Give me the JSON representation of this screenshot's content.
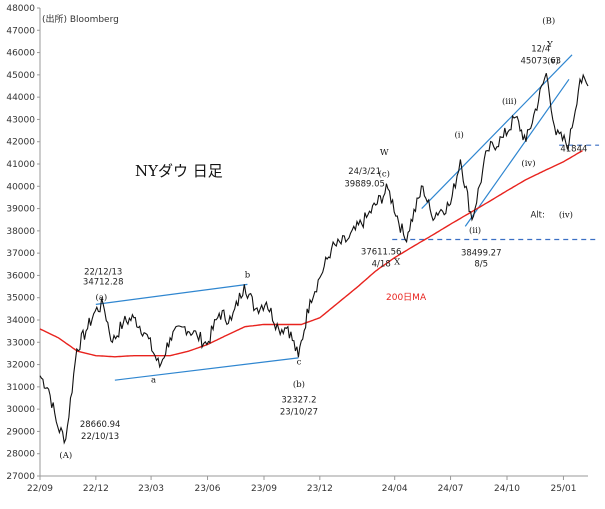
{
  "source_label": "(出所) Bloomberg",
  "title": "NYダウ 日足",
  "ma_label": "200日MA",
  "colors": {
    "price": "#111111",
    "ma": "#e8231e",
    "channel": "#2f86d0",
    "support_line": "#3a6fc4",
    "support_label": "#3a8fd1",
    "grid": "#cccccc"
  },
  "chart_data": {
    "type": "line",
    "title": "NYダウ 日足",
    "xlabel": "",
    "ylabel": "",
    "x_range": [
      "2022-09-01",
      "2025-02-10"
    ],
    "ylim": [
      27000,
      48000
    ],
    "y_ticks": [
      27000,
      28000,
      29000,
      30000,
      31000,
      32000,
      33000,
      34000,
      35000,
      36000,
      37000,
      38000,
      39000,
      40000,
      41000,
      42000,
      43000,
      44000,
      45000,
      46000,
      47000,
      48000
    ],
    "x_ticks": [
      {
        "date": "2022-09-01",
        "label": "22/09"
      },
      {
        "date": "2022-12-01",
        "label": "22/12"
      },
      {
        "date": "2023-03-01",
        "label": "23/03"
      },
      {
        "date": "2023-06-01",
        "label": "23/06"
      },
      {
        "date": "2023-09-01",
        "label": "23/09"
      },
      {
        "date": "2023-12-01",
        "label": "23/12"
      },
      {
        "date": "2024-04-01",
        "label": "24/04"
      },
      {
        "date": "2024-07-01",
        "label": "24/07"
      },
      {
        "date": "2024-10-01",
        "label": "24/10"
      },
      {
        "date": "2025-01-01",
        "label": "25/01"
      }
    ],
    "grid": false,
    "series": [
      {
        "name": "NYダウ",
        "values": [
          [
            "2022-09-01",
            31500
          ],
          [
            "2022-09-15",
            30900
          ],
          [
            "2022-09-30",
            29200
          ],
          [
            "2022-10-13",
            28660
          ],
          [
            "2022-10-31",
            32700
          ],
          [
            "2022-11-15",
            33500
          ],
          [
            "2022-11-30",
            34400
          ],
          [
            "2022-12-13",
            34712
          ],
          [
            "2022-12-28",
            33000
          ],
          [
            "2023-01-15",
            33900
          ],
          [
            "2023-02-01",
            34100
          ],
          [
            "2023-02-20",
            33400
          ],
          [
            "2023-03-15",
            31900
          ],
          [
            "2023-04-01",
            33200
          ],
          [
            "2023-04-25",
            33700
          ],
          [
            "2023-05-15",
            33300
          ],
          [
            "2023-05-31",
            32900
          ],
          [
            "2023-06-20",
            34300
          ],
          [
            "2023-07-10",
            34000
          ],
          [
            "2023-07-31",
            35600
          ],
          [
            "2023-08-18",
            34500
          ],
          [
            "2023-09-05",
            34800
          ],
          [
            "2023-09-25",
            33600
          ],
          [
            "2023-10-10",
            33700
          ],
          [
            "2023-10-27",
            32327
          ],
          [
            "2023-11-15",
            34900
          ],
          [
            "2023-12-01",
            35900
          ],
          [
            "2023-12-20",
            37200
          ],
          [
            "2024-01-15",
            37600
          ],
          [
            "2024-02-15",
            38600
          ],
          [
            "2024-03-21",
            39889
          ],
          [
            "2024-04-18",
            37611
          ],
          [
            "2024-05-17",
            40000
          ],
          [
            "2024-05-31",
            38700
          ],
          [
            "2024-07-01",
            39200
          ],
          [
            "2024-07-17",
            41200
          ],
          [
            "2024-08-05",
            38499
          ],
          [
            "2024-08-30",
            41600
          ],
          [
            "2024-09-25",
            42200
          ],
          [
            "2024-10-15",
            43100
          ],
          [
            "2024-11-01",
            42000
          ],
          [
            "2024-12-04",
            45073
          ],
          [
            "2024-12-20",
            42300
          ],
          [
            "2025-01-10",
            41900
          ],
          [
            "2025-01-28",
            44800
          ],
          [
            "2025-02-10",
            44500
          ]
        ]
      },
      {
        "name": "200日MA",
        "values": [
          [
            "2022-09-01",
            33600
          ],
          [
            "2022-10-01",
            33200
          ],
          [
            "2022-11-01",
            32600
          ],
          [
            "2022-12-01",
            32400
          ],
          [
            "2023-01-01",
            32350
          ],
          [
            "2023-02-01",
            32400
          ],
          [
            "2023-03-01",
            32400
          ],
          [
            "2023-04-01",
            32400
          ],
          [
            "2023-05-01",
            32600
          ],
          [
            "2023-06-01",
            32900
          ],
          [
            "2023-07-01",
            33300
          ],
          [
            "2023-08-01",
            33700
          ],
          [
            "2023-09-01",
            33800
          ],
          [
            "2023-10-01",
            33800
          ],
          [
            "2023-11-01",
            33800
          ],
          [
            "2023-12-01",
            34100
          ],
          [
            "2024-01-01",
            34800
          ],
          [
            "2024-02-01",
            35500
          ],
          [
            "2024-03-01",
            36200
          ],
          [
            "2024-04-01",
            36800
          ],
          [
            "2024-05-01",
            37300
          ],
          [
            "2024-06-01",
            37800
          ],
          [
            "2024-07-01",
            38300
          ],
          [
            "2024-08-01",
            38800
          ],
          [
            "2024-09-01",
            39300
          ],
          [
            "2024-10-01",
            39800
          ],
          [
            "2024-11-01",
            40300
          ],
          [
            "2024-12-01",
            40700
          ],
          [
            "2025-01-01",
            41100
          ],
          [
            "2025-02-01",
            41600
          ]
        ]
      }
    ],
    "trend_lines": [
      {
        "name": "lower-channel",
        "from": [
          "2023-01-01",
          31300
        ],
        "to": [
          "2023-10-27",
          32300
        ]
      },
      {
        "name": "upper-channel",
        "from": [
          "2022-12-01",
          34700
        ],
        "to": [
          "2023-08-05",
          35600
        ]
      },
      {
        "name": "rising-channel-upper",
        "from": [
          "2024-05-15",
          39000
        ],
        "to": [
          "2025-01-15",
          45900
        ]
      },
      {
        "name": "rising-channel-lower",
        "from": [
          "2024-07-25",
          38200
        ],
        "to": [
          "2025-01-10",
          44800
        ]
      }
    ],
    "horizontal_lines": [
      {
        "name": "support-41844",
        "value": 41844,
        "from": "2024-12-25",
        "to": "2025-02-28"
      },
      {
        "name": "support-37611",
        "value": 37611,
        "from": "2024-03-28",
        "to": "2025-02-28"
      }
    ],
    "annotations": [
      {
        "text": "22/12/13",
        "x": "2022-12-13",
        "y": 36050
      },
      {
        "text": "34712.28",
        "x": "2022-12-13",
        "y": 35600
      },
      {
        "text": "(a)",
        "x": "2022-12-10",
        "y": 34900
      },
      {
        "text": "b",
        "x": "2023-08-05",
        "y": 35900
      },
      {
        "text": "a",
        "x": "2023-03-05",
        "y": 31200
      },
      {
        "text": "c",
        "x": "2023-10-28",
        "y": 32000
      },
      {
        "text": "(b)",
        "x": "2023-10-28",
        "y": 31000
      },
      {
        "text": "32327.2",
        "x": "2023-10-28",
        "y": 30300
      },
      {
        "text": "23/10/27",
        "x": "2023-10-28",
        "y": 29750
      },
      {
        "text": "28660.94",
        "x": "2022-12-08",
        "y": 29200
      },
      {
        "text": "22/10/13",
        "x": "2022-12-08",
        "y": 28650
      },
      {
        "text": "(A)",
        "x": "2022-10-13",
        "y": 27800
      },
      {
        "text": "24/3/21",
        "x": "2024-02-12",
        "y": 40550
      },
      {
        "text": "39889.05",
        "x": "2024-02-12",
        "y": 40000
      },
      {
        "text": "W",
        "x": "2024-03-15",
        "y": 41400
      },
      {
        "text": "(c)",
        "x": "2024-03-15",
        "y": 40450
      },
      {
        "text": "37611.56",
        "x": "2024-03-10",
        "y": 36950
      },
      {
        "text": "4/18",
        "x": "2024-03-10",
        "y": 36400
      },
      {
        "text": "X",
        "x": "2024-04-05",
        "y": 36500
      },
      {
        "text": "(i)",
        "x": "2024-07-15",
        "y": 42200
      },
      {
        "text": "(ii)",
        "x": "2024-08-10",
        "y": 37900
      },
      {
        "text": "38499.27",
        "x": "2024-08-20",
        "y": 36900
      },
      {
        "text": "8/5",
        "x": "2024-08-20",
        "y": 36400
      },
      {
        "text": "(iii)",
        "x": "2024-10-05",
        "y": 43700
      },
      {
        "text": "(iv)",
        "x": "2024-11-05",
        "y": 40900
      },
      {
        "text": "12/4",
        "x": "2024-11-25",
        "y": 46050
      },
      {
        "text": "45073.63",
        "x": "2024-11-25",
        "y": 45500
      },
      {
        "text": "(v)",
        "x": "2024-12-15",
        "y": 45500
      },
      {
        "text": "(B)",
        "x": "2024-12-08",
        "y": 47300
      },
      {
        "text": "Y",
        "x": "2024-12-10",
        "y": 46250
      },
      {
        "text": "Alt:",
        "x": "2024-11-20",
        "y": 38600
      },
      {
        "text": "(iv)",
        "x": "2025-01-05",
        "y": 38600
      },
      {
        "text": "41844",
        "x": "2025-01-18",
        "y": 41550
      }
    ]
  }
}
